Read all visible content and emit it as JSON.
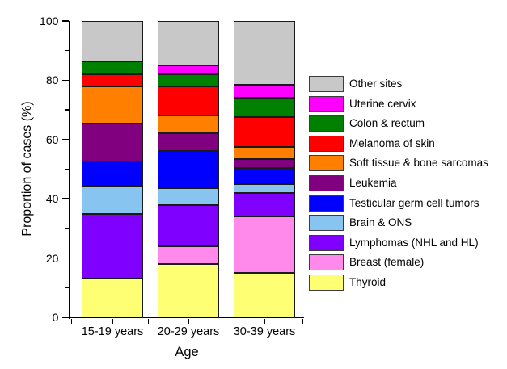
{
  "chart_data": {
    "type": "bar",
    "subtype": "stacked-vertical",
    "title": "",
    "xlabel": "Age",
    "ylabel": "Proportion of cases (%)",
    "ylim": [
      0,
      100
    ],
    "y_major_ticks": [
      0,
      20,
      40,
      60,
      80,
      100
    ],
    "y_minor_ticks": [
      10,
      30,
      50,
      70,
      90
    ],
    "grid": false,
    "legend_position": "right",
    "categories": [
      "15-19 years",
      "20-29 years",
      "30-39 years"
    ],
    "series": [
      {
        "name": "Thyroid",
        "color": "#FFFF73",
        "values": [
          13,
          18,
          15
        ]
      },
      {
        "name": "Breast (female)",
        "color": "#FF8AEC",
        "values": [
          0,
          6,
          19
        ]
      },
      {
        "name": "Lymphomas (NHL and HL)",
        "color": "#8000FF",
        "values": [
          22,
          14,
          8
        ]
      },
      {
        "name": "Brain & ONS",
        "color": "#88C4F0",
        "values": [
          9.5,
          5.5,
          3
        ]
      },
      {
        "name": "Testicular germ cell tumors",
        "color": "#0000FF",
        "values": [
          8,
          12.5,
          5.5
        ]
      },
      {
        "name": "Leukemia",
        "color": "#800080",
        "values": [
          13,
          6,
          3
        ]
      },
      {
        "name": "Soft tissue & bone sarcomas",
        "color": "#FF8000",
        "values": [
          12.5,
          6,
          4
        ]
      },
      {
        "name": "Melanoma of skin",
        "color": "#FF0000",
        "values": [
          4,
          10,
          10
        ]
      },
      {
        "name": "Colon & rectum",
        "color": "#008000",
        "values": [
          4.5,
          4,
          6.5
        ]
      },
      {
        "name": "Uterine cervix",
        "color": "#FF00FF",
        "values": [
          0,
          3,
          4.5
        ]
      },
      {
        "name": "Other sites",
        "color": "#C8C8C8",
        "values": [
          13.5,
          15,
          21.5
        ]
      }
    ],
    "legend_order_note": "legend lists series top-of-stack first (reverse of stacking order)",
    "axis_color": "#000000",
    "bar_outline_color": "#1a1a1a"
  }
}
